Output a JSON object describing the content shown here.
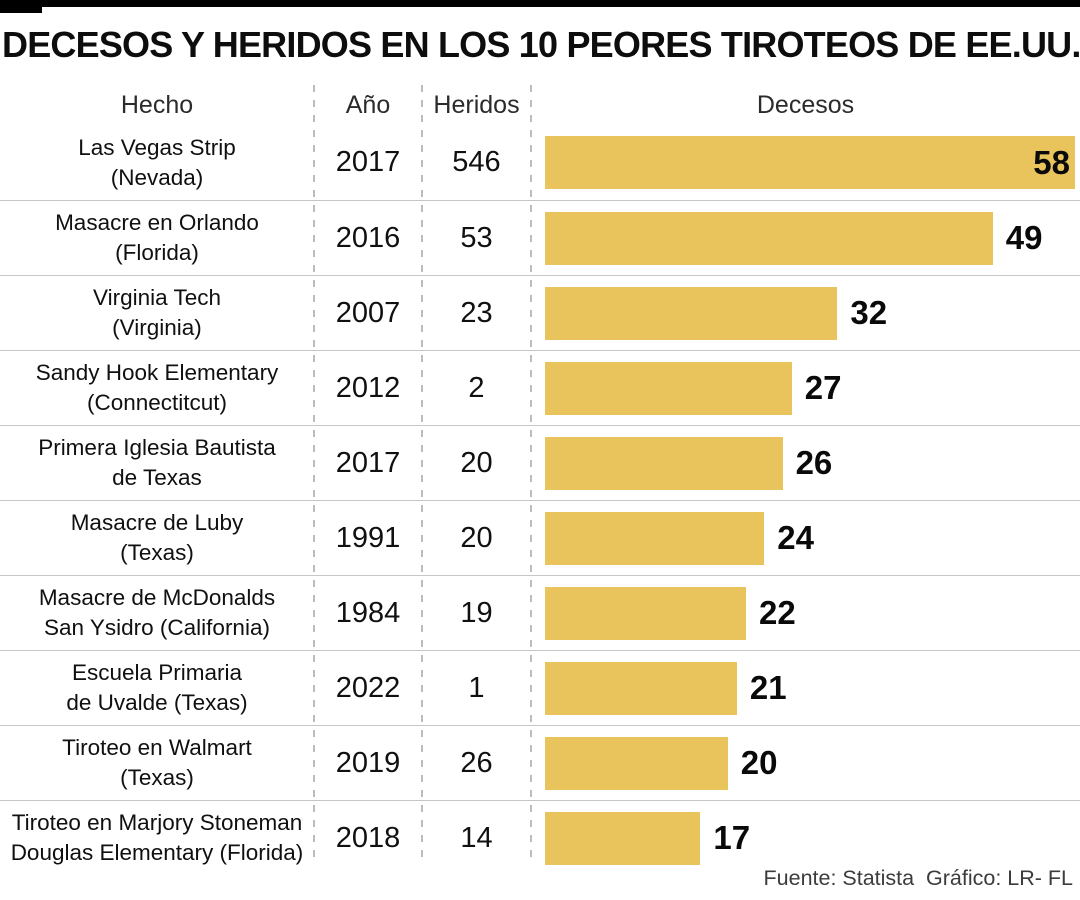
{
  "title": "DECESOS Y HERIDOS EN LOS 10 PEORES TIROTEOS DE EE.UU.",
  "columns": {
    "hecho": "Hecho",
    "ano": "Año",
    "heridos": "Heridos",
    "decesos": "Decesos"
  },
  "rows": [
    {
      "hecho": "Las Vegas Strip\n(Nevada)",
      "ano": "2017",
      "heridos": "546",
      "decesos": 58
    },
    {
      "hecho": "Masacre en Orlando\n(Florida)",
      "ano": "2016",
      "heridos": "53",
      "decesos": 49
    },
    {
      "hecho": "Virginia Tech\n(Virginia)",
      "ano": "2007",
      "heridos": "23",
      "decesos": 32
    },
    {
      "hecho": "Sandy Hook Elementary\n(Connectitcut)",
      "ano": "2012",
      "heridos": "2",
      "decesos": 27
    },
    {
      "hecho": "Primera Iglesia Bautista\nde Texas",
      "ano": "2017",
      "heridos": "20",
      "decesos": 26
    },
    {
      "hecho": "Masacre de Luby\n(Texas)",
      "ano": "1991",
      "heridos": "20",
      "decesos": 24
    },
    {
      "hecho": "Masacre de McDonalds\nSan Ysidro (California)",
      "ano": "1984",
      "heridos": "19",
      "decesos": 22
    },
    {
      "hecho": "Escuela Primaria\nde Uvalde (Texas)",
      "ano": "2022",
      "heridos": "1",
      "decesos": 21
    },
    {
      "hecho": "Tiroteo en Walmart\n(Texas)",
      "ano": "2019",
      "heridos": "26",
      "decesos": 20
    },
    {
      "hecho": "Tiroteo en Marjory Stoneman\nDouglas Elementary (Florida)",
      "ano": "2018",
      "heridos": "14",
      "decesos": 17
    }
  ],
  "footer": {
    "credits": "Fuente: Statista  Gráfico: LR- FL"
  },
  "colors": {
    "bar": "#e9c45c",
    "row_separator": "#c6c6c6",
    "dashed_line": "#bdbdbd",
    "masthead": "#000000",
    "text": "#101010"
  },
  "chart_data": {
    "type": "bar",
    "orientation": "horizontal",
    "title": "DECESOS Y HERIDOS EN LOS 10 PEORES TIROTEOS DE EE.UU.",
    "categories": [
      "Las Vegas Strip (Nevada)",
      "Masacre en Orlando (Florida)",
      "Virginia Tech (Virginia)",
      "Sandy Hook Elementary (Connectitcut)",
      "Primera Iglesia Bautista de Texas",
      "Masacre de Luby (Texas)",
      "Masacre de McDonalds San Ysidro (California)",
      "Escuela Primaria de Uvalde (Texas)",
      "Tiroteo en Walmart (Texas)",
      "Tiroteo en Marjory Stoneman Douglas Elementary (Florida)"
    ],
    "series": [
      {
        "name": "Decesos",
        "values": [
          58,
          49,
          32,
          27,
          26,
          24,
          22,
          21,
          20,
          17
        ]
      },
      {
        "name": "Heridos",
        "values": [
          546,
          53,
          23,
          2,
          20,
          20,
          19,
          1,
          26,
          14
        ]
      },
      {
        "name": "Año",
        "values": [
          2017,
          2016,
          2007,
          2012,
          2017,
          1991,
          1984,
          2022,
          2019,
          2018
        ]
      }
    ],
    "xlim": [
      0,
      58
    ],
    "bar_color": "#e9c45c",
    "value_labels": true,
    "grid": false,
    "legend_position": "none",
    "source": "Fuente: Statista  Gráfico: LR- FL"
  }
}
